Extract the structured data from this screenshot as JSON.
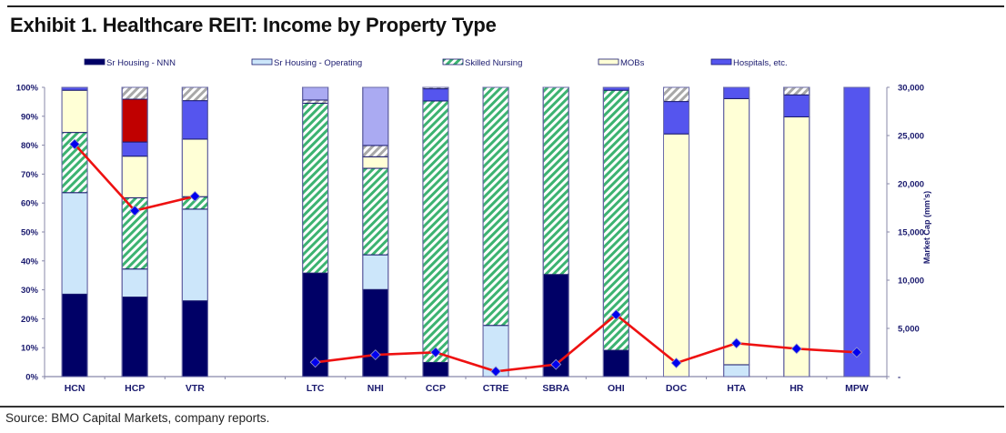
{
  "header": {
    "title": "Exhibit 1. Healthcare REIT: Income by Property Type"
  },
  "footer": {
    "source": "Source: BMO Capital Markets, company reports."
  },
  "chart_data": {
    "type": "bar",
    "subtype": "stacked-100-percent-with-line-secondary-axis",
    "title": "Exhibit 1. Healthcare REIT: Income by Property Type",
    "xlabel": "",
    "ylabel": "",
    "y2label": "Market Cap (mm's)",
    "ylim": [
      0,
      100
    ],
    "y2lim": [
      0,
      30000
    ],
    "yticks": [
      "0%",
      "10%",
      "20%",
      "30%",
      "40%",
      "50%",
      "60%",
      "70%",
      "80%",
      "90%",
      "100%"
    ],
    "y2ticks": [
      "-",
      "5,000",
      "10,000",
      "15,000",
      "20,000",
      "25,000",
      "30,000"
    ],
    "grid": false,
    "legend_position": "top",
    "categories": [
      "HCN",
      "HCP",
      "VTR",
      "",
      "LTC",
      "NHI",
      "CCP",
      "CTRE",
      "SBRA",
      "OHI",
      "DOC",
      "HTA",
      "HR",
      "MPW"
    ],
    "series": [
      {
        "name": "Sr Housing - NNN",
        "key": "nnn",
        "in_legend": true,
        "color": "#000066",
        "pattern": "solid",
        "values": [
          28.5,
          27.5,
          26.2,
          null,
          35.8,
          30.1,
          4.9,
          0,
          35.3,
          9.1,
          0,
          0,
          0,
          0
        ]
      },
      {
        "name": "Sr Housing - Operating",
        "key": "op",
        "in_legend": true,
        "color": "#cce6fa",
        "pattern": "solid",
        "values": [
          35.1,
          9.7,
          31.7,
          null,
          0,
          12.0,
          0,
          17.7,
          0,
          0,
          0,
          4.1,
          0,
          0
        ]
      },
      {
        "name": "Skilled Nursing",
        "key": "sn",
        "in_legend": true,
        "color": "#3cb371",
        "pattern": "hatch-green",
        "values": [
          20.8,
          24.6,
          4.3,
          null,
          58.7,
          29.9,
          90.4,
          82.3,
          64.7,
          89.9,
          0,
          0,
          0,
          0
        ]
      },
      {
        "name": "MOBs",
        "key": "mob",
        "in_legend": true,
        "color": "#ffffd6",
        "pattern": "solid",
        "values": [
          14.6,
          14.4,
          19.9,
          null,
          0,
          4.0,
          0,
          0,
          0,
          0,
          83.9,
          92.0,
          89.8,
          0
        ]
      },
      {
        "name": "Hospitals, etc.",
        "key": "hosp",
        "in_legend": true,
        "color": "#5555ee",
        "pattern": "solid",
        "values": [
          1.0,
          4.9,
          13.3,
          null,
          0,
          0,
          4.2,
          0,
          0,
          1.0,
          11.2,
          3.9,
          7.6,
          100
        ]
      },
      {
        "name": "Other (red)",
        "key": "red",
        "in_legend": false,
        "color": "#c00000",
        "pattern": "solid",
        "values": [
          0,
          14.8,
          0,
          null,
          0,
          0,
          0,
          0,
          0,
          0,
          0,
          0,
          0,
          0
        ]
      },
      {
        "name": "Other (hatched gray)",
        "key": "gray",
        "in_legend": false,
        "color": "#b0b0b0",
        "pattern": "hatch-gray",
        "values": [
          0,
          4.1,
          4.6,
          null,
          1.1,
          3.9,
          0.5,
          0,
          0,
          0,
          4.9,
          0,
          2.6,
          0
        ]
      },
      {
        "name": "Other (lavender)",
        "key": "lav",
        "in_legend": false,
        "color": "#aaaaf2",
        "pattern": "solid",
        "values": [
          0,
          0,
          0,
          null,
          4.4,
          20.1,
          0,
          0,
          0,
          0,
          0,
          0,
          0,
          0
        ]
      }
    ],
    "line_series": {
      "name": "Market Cap (mm's)",
      "axis": "right",
      "color": "#ee1111",
      "marker_color": "#0000ee",
      "groups": [
        {
          "categories": [
            "HCN",
            "HCP",
            "VTR"
          ],
          "values": [
            24100,
            17200,
            18700
          ]
        },
        {
          "categories": [
            "LTC",
            "NHI",
            "CCP",
            "CTRE",
            "SBRA",
            "OHI",
            "DOC",
            "HTA",
            "HR",
            "MPW"
          ],
          "values": [
            1480,
            2260,
            2520,
            540,
            1260,
            6420,
            1410,
            3460,
            2890,
            2520
          ]
        }
      ]
    }
  }
}
